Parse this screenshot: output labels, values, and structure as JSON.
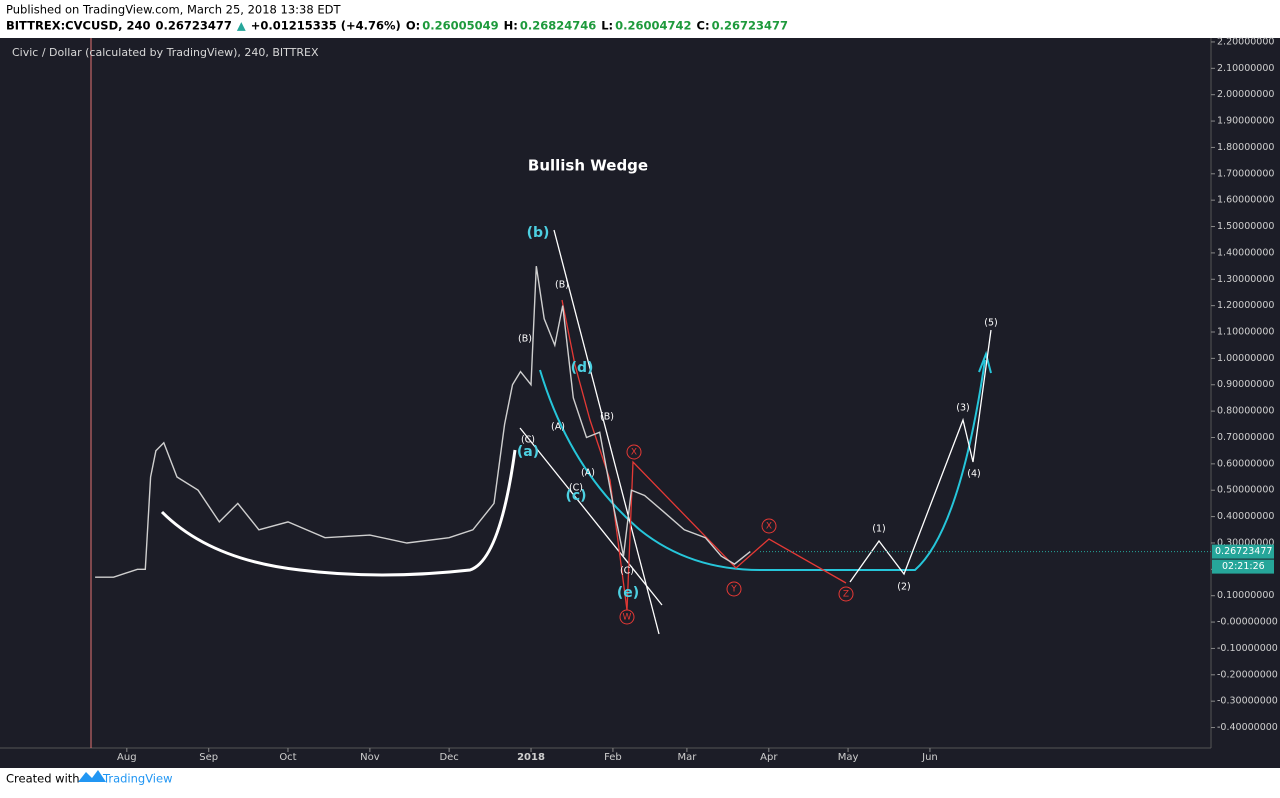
{
  "header": {
    "published": "Published on TradingView.com, March 25, 2018 13:38 EDT",
    "quote": [
      {
        "text": "BITTREX:CVCUSD, 240",
        "color": "#000000"
      },
      {
        "text": "0.26723477",
        "color": "#000000"
      },
      {
        "text": "▲",
        "color": "#26a69a"
      },
      {
        "text": "+0.01215335 (+4.76%)",
        "color": "#000000"
      },
      {
        "text": "O:",
        "color": "#000000"
      },
      {
        "text": "0.26005049",
        "color": "#1e9a3c"
      },
      {
        "text": "H:",
        "color": "#000000"
      },
      {
        "text": "0.26824746",
        "color": "#1e9a3c"
      },
      {
        "text": "L:",
        "color": "#000000"
      },
      {
        "text": "0.26004742",
        "color": "#1e9a3c"
      },
      {
        "text": "C:",
        "color": "#000000"
      },
      {
        "text": "0.26723477",
        "color": "#1e9a3c"
      }
    ]
  },
  "footer": {
    "created": "Created with",
    "brand": "TradingView"
  },
  "chart_data": {
    "type": "line",
    "title": "Civic / Dollar (calculated by TradingView), 240, BITTREX",
    "x": [
      "2017-07-20",
      "2017-07-27",
      "2017-08-05",
      "2017-08-08",
      "2017-08-10",
      "2017-08-12",
      "2017-08-15",
      "2017-08-20",
      "2017-08-28",
      "2017-09-05",
      "2017-09-12",
      "2017-09-20",
      "2017-10-01",
      "2017-10-15",
      "2017-11-01",
      "2017-11-15",
      "2017-12-01",
      "2017-12-10",
      "2017-12-18",
      "2017-12-22",
      "2017-12-25",
      "2017-12-28",
      "2018-01-01",
      "2018-01-03",
      "2018-01-06",
      "2018-01-10",
      "2018-01-13",
      "2018-01-17",
      "2018-01-22",
      "2018-01-27",
      "2018-02-01",
      "2018-02-05",
      "2018-02-08",
      "2018-02-13",
      "2018-02-20",
      "2018-02-28",
      "2018-03-08",
      "2018-03-14",
      "2018-03-19",
      "2018-03-25"
    ],
    "values": [
      0.17,
      0.17,
      0.2,
      0.2,
      0.55,
      0.65,
      0.68,
      0.55,
      0.5,
      0.38,
      0.45,
      0.35,
      0.38,
      0.32,
      0.33,
      0.3,
      0.32,
      0.35,
      0.45,
      0.75,
      0.9,
      0.95,
      0.9,
      1.35,
      1.15,
      1.05,
      1.2,
      0.85,
      0.7,
      0.72,
      0.45,
      0.25,
      0.5,
      0.48,
      0.42,
      0.35,
      0.32,
      0.25,
      0.22,
      0.26723477
    ],
    "color": "#cfcfcf",
    "xlim": [
      "2017-06-14",
      "2018-09-15"
    ],
    "ylim": [
      -0.47,
      2.215
    ],
    "xticks": [
      {
        "value": "2017-08-01",
        "label": "Aug"
      },
      {
        "value": "2017-09-01",
        "label": "Sep"
      },
      {
        "value": "2017-10-01",
        "label": "Oct"
      },
      {
        "value": "2017-11-01",
        "label": "Nov"
      },
      {
        "value": "2017-12-01",
        "label": "Dec"
      },
      {
        "value": "2018-01-01",
        "label": "2018"
      },
      {
        "value": "2018-02-01",
        "label": "Feb"
      },
      {
        "value": "2018-03-01",
        "label": "Mar"
      },
      {
        "value": "2018-04-01",
        "label": "Apr"
      },
      {
        "value": "2018-05-01",
        "label": "May"
      },
      {
        "value": "2018-06-01",
        "label": "Jun"
      }
    ],
    "yticks": [
      {
        "value": 2.2,
        "label": "2.20000000"
      },
      {
        "value": 2.1,
        "label": "2.10000000"
      },
      {
        "value": 2.0,
        "label": "2.00000000"
      },
      {
        "value": 1.9,
        "label": "1.90000000"
      },
      {
        "value": 1.8,
        "label": "1.80000000"
      },
      {
        "value": 1.7,
        "label": "1.70000000"
      },
      {
        "value": 1.6,
        "label": "1.60000000"
      },
      {
        "value": 1.5,
        "label": "1.50000000"
      },
      {
        "value": 1.4,
        "label": "1.40000000"
      },
      {
        "value": 1.3,
        "label": "1.30000000"
      },
      {
        "value": 1.2,
        "label": "1.20000000"
      },
      {
        "value": 1.1,
        "label": "1.10000000"
      },
      {
        "value": 1.0,
        "label": "1.00000000"
      },
      {
        "value": 0.9,
        "label": "0.90000000"
      },
      {
        "value": 0.8,
        "label": "0.80000000"
      },
      {
        "value": 0.7,
        "label": "0.70000000"
      },
      {
        "value": 0.6,
        "label": "0.60000000"
      },
      {
        "value": 0.5,
        "label": "0.50000000"
      },
      {
        "value": 0.4,
        "label": "0.40000000"
      },
      {
        "value": 0.3,
        "label": "0.30000000"
      },
      {
        "value": 0.2,
        "label": "0.20000000"
      },
      {
        "value": 0.1,
        "label": "0.10000000"
      },
      {
        "value": 0,
        "label": "-0.00000000"
      },
      {
        "value": -0.1,
        "label": "-0.10000000"
      },
      {
        "value": -0.2,
        "label": "-0.20000000"
      },
      {
        "value": -0.3,
        "label": "-0.30000000"
      },
      {
        "value": -0.4,
        "label": "-0.40000000"
      }
    ],
    "grid": false,
    "price_label": {
      "value": 0.26723477,
      "label": "0.26723477"
    },
    "countdown": "02:21:26",
    "annotations": [
      {
        "text": "Bullish Wedge",
        "color": "#ffffff"
      },
      {
        "text": "(b)",
        "color": "#4dd0e1"
      },
      {
        "text": "(d)",
        "color": "#4dd0e1"
      },
      {
        "text": "(a)",
        "color": "#4dd0e1"
      },
      {
        "text": "(c)",
        "color": "#4dd0e1"
      },
      {
        "text": "(e)",
        "color": "#4dd0e1"
      },
      {
        "text": "(B)",
        "color": "#ffffff"
      },
      {
        "text": "(B)",
        "color": "#ffffff"
      },
      {
        "text": "(B)",
        "color": "#ffffff"
      },
      {
        "text": "(C)",
        "color": "#ffffff"
      },
      {
        "text": "(A)",
        "color": "#ffffff"
      },
      {
        "text": "(A)",
        "color": "#ffffff"
      },
      {
        "text": "(C)",
        "color": "#ffffff"
      },
      {
        "text": "(C)",
        "color": "#ffffff"
      },
      {
        "text": "(1)",
        "color": "#ffffff"
      },
      {
        "text": "(2)",
        "color": "#ffffff"
      },
      {
        "text": "(3)",
        "color": "#ffffff"
      },
      {
        "text": "(4)",
        "color": "#ffffff"
      },
      {
        "text": "(5)",
        "color": "#ffffff"
      },
      {
        "text": "X",
        "color": "#e53935"
      },
      {
        "text": "W",
        "color": "#e53935"
      },
      {
        "text": "X",
        "color": "#e53935"
      },
      {
        "text": "Y",
        "color": "#e53935"
      },
      {
        "text": "Z",
        "color": "#e53935"
      }
    ]
  }
}
